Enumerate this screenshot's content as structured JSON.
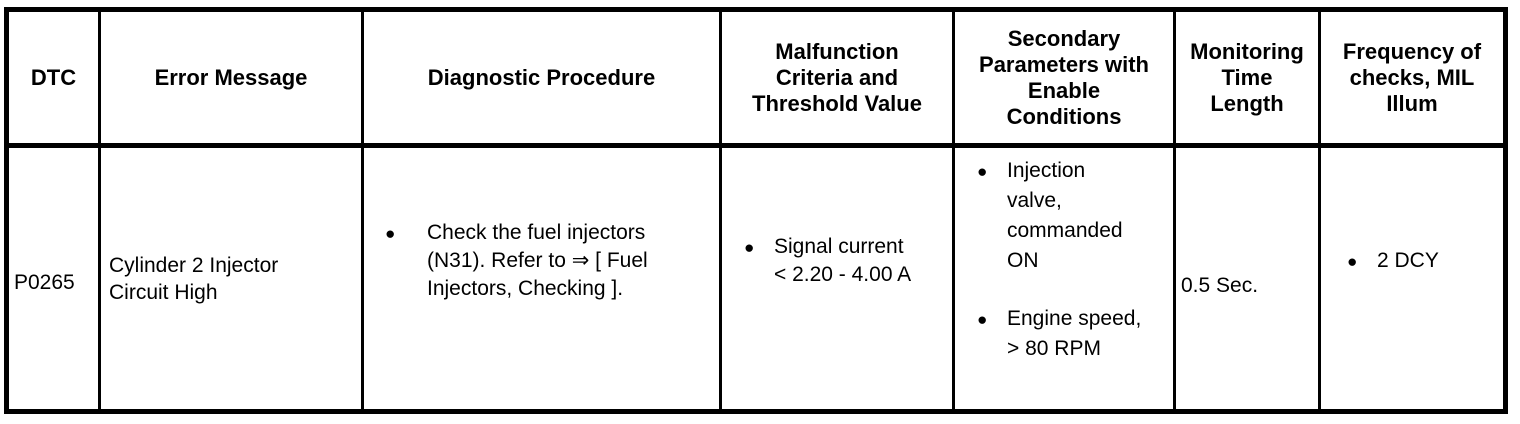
{
  "icons": {
    "bullet": "●"
  },
  "colors": {
    "border": "#000000",
    "text": "#000000",
    "background": "#ffffff"
  },
  "table": {
    "headers": [
      "DTC",
      "Error Message",
      "Diagnostic Procedure",
      "Malfunction\nCriteria and\nThreshold Value",
      "Secondary\nParameters with\nEnable\nConditions",
      "Monitoring\nTime\nLength",
      "Frequency of\nchecks, MIL\nIllum"
    ],
    "row": {
      "dtc": "P0265",
      "error_message": "Cylinder 2 Injector\nCircuit High",
      "diagnostic_procedure": [
        "Check the fuel injectors\n(N31). Refer to ⇒ [ Fuel\nInjectors, Checking ]."
      ],
      "malfunction_criteria": [
        "Signal current\n< 2.20 - 4.00 A"
      ],
      "secondary_parameters": [
        "Injection\nvalve,\ncommanded\nON",
        "Engine speed,\n> 80 RPM"
      ],
      "monitoring_time": "0.5 Sec.",
      "frequency_of_checks": [
        "2 DCY"
      ]
    }
  }
}
